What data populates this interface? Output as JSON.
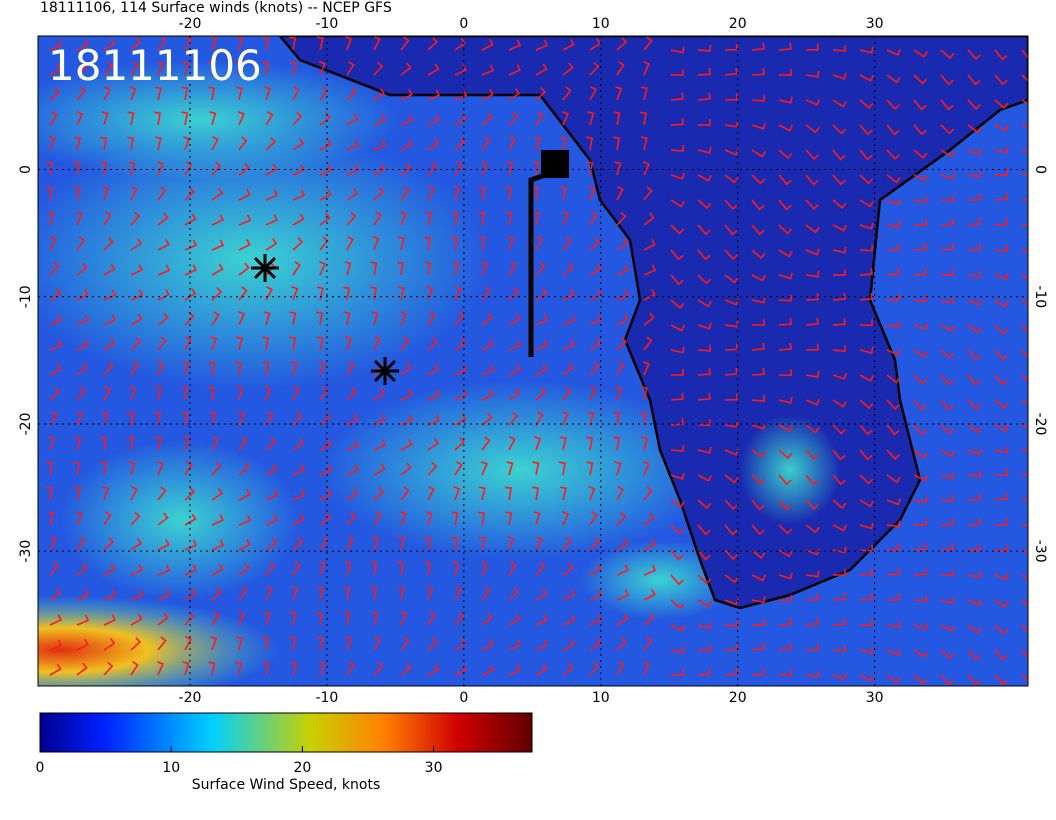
{
  "title": "18111106, 114 Surface winds (knots) -- NCEP GFS",
  "stamp": "18111106",
  "map": {
    "lonlim": [
      -31.1,
      41.2
    ],
    "latlim": [
      10.5,
      -40.6
    ],
    "lonticks": [
      -20,
      -10,
      0,
      10,
      20,
      30
    ],
    "latticks": [
      0,
      -10,
      -20,
      -30
    ]
  },
  "colorbar": {
    "lim": [
      0,
      37.5
    ],
    "ticks": [
      0,
      10,
      20,
      30
    ],
    "label": "Surface Wind Speed, knots"
  }
}
